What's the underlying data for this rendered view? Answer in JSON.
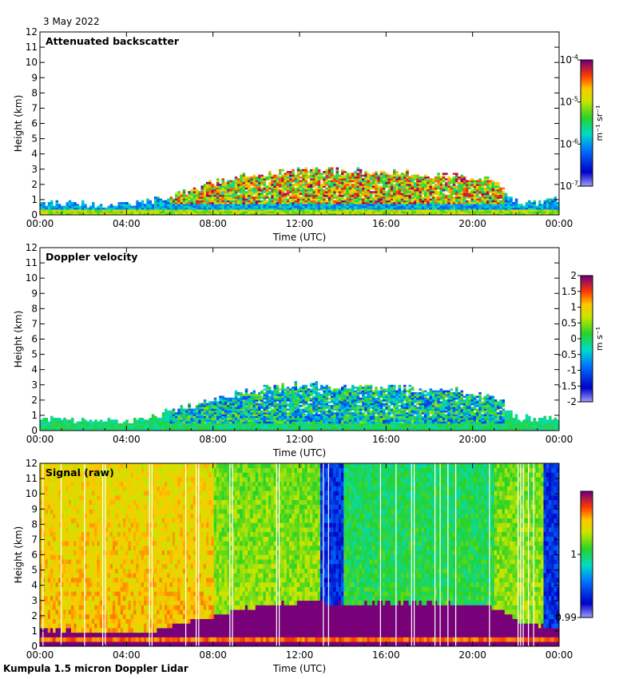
{
  "date_label": "3 May 2022",
  "footer_label": "Kumpula 1.5 micron Doppler Lidar",
  "chart_data": [
    {
      "type": "heatmap",
      "title": "Attenuated backscatter",
      "xlabel": "Time (UTC)",
      "ylabel": "Height (km)",
      "x_ticks": [
        "00:00",
        "04:00",
        "08:00",
        "12:00",
        "16:00",
        "20:00",
        "00:00"
      ],
      "y_ticks": [
        "0",
        "1",
        "2",
        "3",
        "4",
        "5",
        "6",
        "7",
        "8",
        "9",
        "10",
        "11",
        "12"
      ],
      "ylim": [
        0,
        12
      ],
      "xlim_hours": [
        0,
        24
      ],
      "colorbar": {
        "scale": "log",
        "min": "1e-7",
        "max": "1e-4",
        "ticks": [
          {
            "base": "10",
            "exp": "-4"
          },
          {
            "base": "10",
            "exp": "-5"
          },
          {
            "base": "10",
            "exp": "-6"
          },
          {
            "base": "10",
            "exp": "-7"
          }
        ],
        "unit": "m⁻¹ sr⁻¹"
      },
      "mixed_layer_top_km": [
        0.7,
        0.7,
        0.6,
        0.6,
        0.6,
        0.8,
        1.2,
        1.6,
        2.0,
        2.4,
        2.6,
        2.8,
        2.9,
        2.9,
        2.8,
        2.8,
        2.8,
        2.7,
        2.6,
        2.6,
        2.6,
        2.4,
        0.8,
        0.7,
        0.9
      ]
    },
    {
      "type": "heatmap",
      "title": "Doppler velocity",
      "xlabel": "Time (UTC)",
      "ylabel": "Height (km)",
      "x_ticks": [
        "00:00",
        "04:00",
        "08:00",
        "12:00",
        "16:00",
        "20:00",
        "00:00"
      ],
      "y_ticks": [
        "0",
        "1",
        "2",
        "3",
        "4",
        "5",
        "6",
        "7",
        "8",
        "9",
        "10",
        "11",
        "12"
      ],
      "ylim": [
        0,
        12
      ],
      "xlim_hours": [
        0,
        24
      ],
      "colorbar": {
        "scale": "linear",
        "min": -2,
        "max": 2,
        "ticks": [
          "2",
          "1.5",
          "1",
          "0.5",
          "0",
          "-0.5",
          "-1",
          "-1.5",
          "-2"
        ],
        "unit": "m s⁻¹"
      },
      "mixed_layer_top_km": [
        0.7,
        0.7,
        0.6,
        0.6,
        0.6,
        0.8,
        1.2,
        1.6,
        2.0,
        2.4,
        2.6,
        2.8,
        2.9,
        2.9,
        2.8,
        2.8,
        2.8,
        2.7,
        2.6,
        2.6,
        2.6,
        2.4,
        0.8,
        0.7,
        0.9
      ]
    },
    {
      "type": "heatmap",
      "title": "Signal (raw)",
      "xlabel": "Time (UTC)",
      "ylabel": "Height (km)",
      "x_ticks": [
        "00:00",
        "04:00",
        "08:00",
        "12:00",
        "16:00",
        "20:00",
        "00:00"
      ],
      "y_ticks": [
        "0",
        "1",
        "2",
        "3",
        "4",
        "5",
        "6",
        "7",
        "8",
        "9",
        "10",
        "11",
        "12"
      ],
      "ylim": [
        0,
        12
      ],
      "xlim_hours": [
        0,
        24
      ],
      "colorbar": {
        "scale": "linear",
        "min": 0.99,
        "max": 1.01,
        "ticks": [
          "1",
          "0.99"
        ],
        "unit": ""
      },
      "boundary_layer_top_km": [
        1.0,
        0.9,
        0.8,
        0.7,
        0.7,
        0.8,
        1.1,
        1.5,
        1.8,
        2.2,
        2.5,
        2.6,
        2.7,
        2.8,
        2.6,
        2.6,
        2.7,
        2.7,
        2.7,
        2.6,
        2.6,
        2.4,
        1.6,
        1.2,
        1.1
      ],
      "low_signal_hours": [
        [
          13.0,
          14.0
        ],
        [
          23.3,
          24.0
        ]
      ]
    }
  ]
}
